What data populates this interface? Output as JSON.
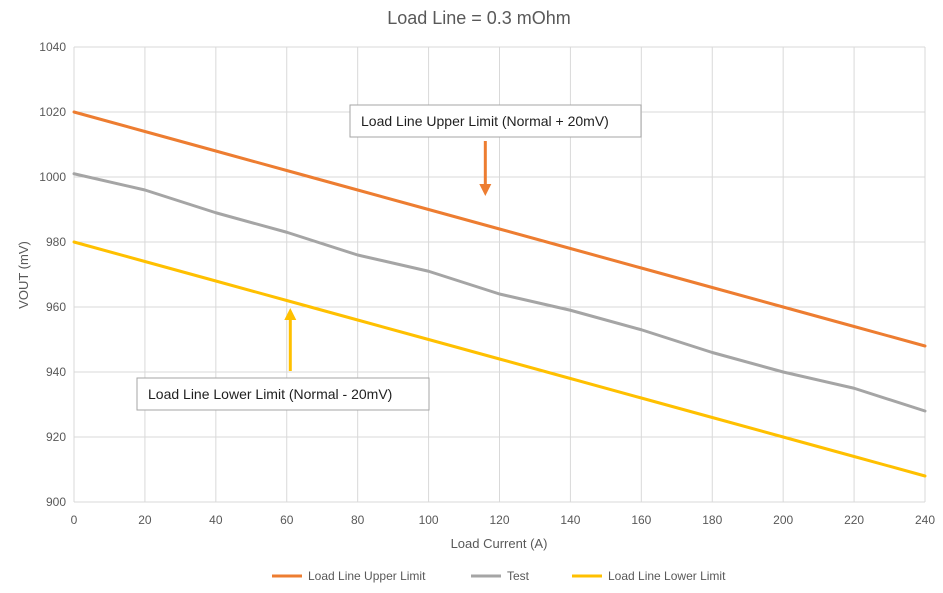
{
  "chart_data": {
    "type": "line",
    "title": "Load Line =  0.3 mOhm",
    "xlabel": "Load Current (A)",
    "ylabel": "VOUT (mV)",
    "xlim": [
      0,
      240
    ],
    "ylim": [
      900,
      1040
    ],
    "x_ticks": [
      "0",
      "20",
      "40",
      "60",
      "80",
      "100",
      "120",
      "140",
      "160",
      "180",
      "200",
      "220",
      "240"
    ],
    "y_ticks": [
      "900",
      "920",
      "940",
      "960",
      "980",
      "1000",
      "1020",
      "1040"
    ],
    "grid": "vertical and horizontal",
    "legend_position": "bottom",
    "x": [
      0,
      20,
      40,
      60,
      80,
      100,
      120,
      140,
      160,
      180,
      200,
      220,
      240
    ],
    "series": [
      {
        "name": "Load Line Upper Limit",
        "color": "#ED7D31",
        "values": [
          1020,
          1014,
          1008,
          1002,
          996,
          990,
          984,
          978,
          972,
          966,
          960,
          954,
          948
        ]
      },
      {
        "name": "Test",
        "color": "#A5A5A5",
        "values": [
          1001,
          996,
          989,
          983,
          976,
          971,
          964,
          959,
          953,
          946,
          940,
          935,
          928
        ]
      },
      {
        "name": "Load Line Lower Limit",
        "color": "#FFC000",
        "values": [
          980,
          974,
          968,
          962,
          956,
          950,
          944,
          938,
          932,
          926,
          920,
          914,
          908
        ]
      }
    ],
    "annotations": [
      {
        "text": "Load Line Upper Limit (Normal + 20mV)",
        "arrow": "down",
        "arrow_color": "#ED7D31",
        "arrow_at_x": 116,
        "arrow_tip_y": 984
      },
      {
        "text": "Load Line Lower Limit (Normal - 20mV)",
        "arrow": "up",
        "arrow_color": "#FFC000",
        "arrow_at_x": 61,
        "arrow_tip_y": 962
      }
    ]
  }
}
